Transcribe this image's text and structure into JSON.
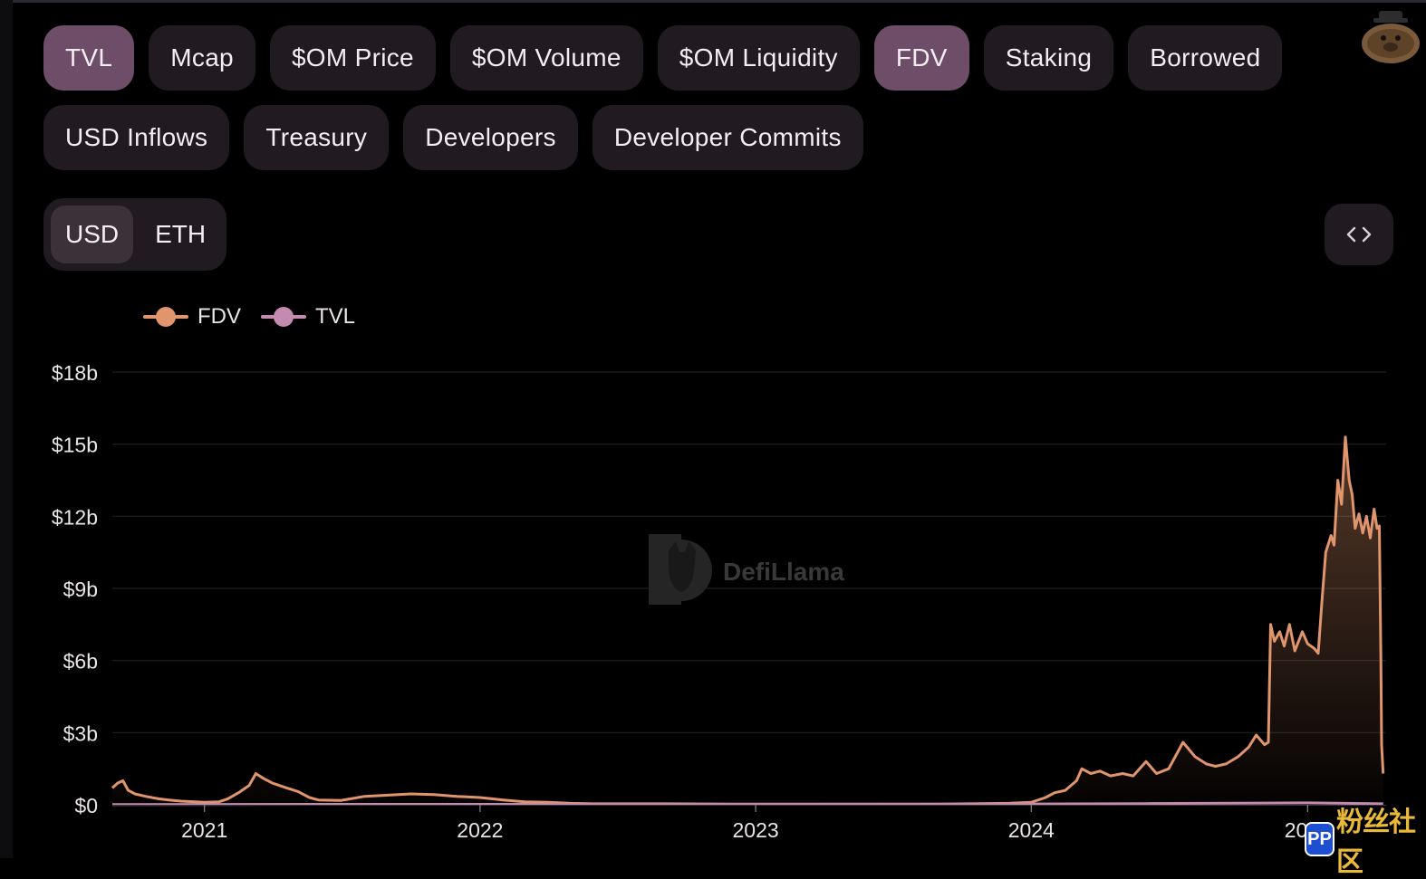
{
  "tabs": {
    "row1": [
      {
        "label": "TVL",
        "active": true
      },
      {
        "label": "Mcap",
        "active": false
      },
      {
        "label": "$OM Price",
        "active": false
      },
      {
        "label": "$OM Volume",
        "active": false
      },
      {
        "label": "$OM Liquidity",
        "active": false
      },
      {
        "label": "FDV",
        "active": true
      },
      {
        "label": "Staking",
        "active": false
      },
      {
        "label": "Borrowed",
        "active": false
      }
    ],
    "row2": [
      {
        "label": "USD Inflows",
        "active": false
      },
      {
        "label": "Treasury",
        "active": false
      },
      {
        "label": "Developers",
        "active": false
      },
      {
        "label": "Developer Commits",
        "active": false
      }
    ]
  },
  "unit_toggle": {
    "usd": "USD",
    "eth": "ETH",
    "selected": "USD"
  },
  "embed_icon": "code-brackets-icon",
  "watermark": "DefiLlama",
  "badge": {
    "logo": "PP",
    "text": "粉丝社区"
  },
  "chart_data": {
    "type": "line",
    "legend_position": "top-left",
    "grid": true,
    "xlim": [
      "2020-09-01",
      "2025-04-15"
    ],
    "ylim": [
      0,
      18
    ],
    "y_ticks": [
      0,
      3,
      6,
      9,
      12,
      15,
      18
    ],
    "y_tick_labels": [
      "$0",
      "$3b",
      "$6b",
      "$9b",
      "$12b",
      "$15b",
      "$18b"
    ],
    "x_tick_dates": [
      "2021-01-01",
      "2022-01-01",
      "2023-01-01",
      "2024-01-01",
      "2025-01-01"
    ],
    "x_tick_labels": [
      "2021",
      "2022",
      "2023",
      "2024",
      "2025"
    ],
    "series": [
      {
        "name": "FDV",
        "color": "#e0956c",
        "fill": true,
        "unit": "USD billions",
        "points": [
          [
            "2020-09-01",
            0.7
          ],
          [
            "2020-09-08",
            0.9
          ],
          [
            "2020-09-15",
            1.0
          ],
          [
            "2020-09-22",
            0.6
          ],
          [
            "2020-10-01",
            0.45
          ],
          [
            "2020-10-15",
            0.35
          ],
          [
            "2020-11-01",
            0.25
          ],
          [
            "2020-11-15",
            0.2
          ],
          [
            "2020-12-01",
            0.15
          ],
          [
            "2021-01-01",
            0.1
          ],
          [
            "2021-01-20",
            0.12
          ],
          [
            "2021-02-01",
            0.25
          ],
          [
            "2021-02-15",
            0.5
          ],
          [
            "2021-03-01",
            0.8
          ],
          [
            "2021-03-10",
            1.3
          ],
          [
            "2021-03-20",
            1.1
          ],
          [
            "2021-04-01",
            0.9
          ],
          [
            "2021-04-20",
            0.7
          ],
          [
            "2021-05-05",
            0.55
          ],
          [
            "2021-05-20",
            0.3
          ],
          [
            "2021-06-01",
            0.2
          ],
          [
            "2021-07-01",
            0.18
          ],
          [
            "2021-08-01",
            0.35
          ],
          [
            "2021-09-01",
            0.4
          ],
          [
            "2021-10-01",
            0.45
          ],
          [
            "2021-11-01",
            0.42
          ],
          [
            "2021-12-01",
            0.35
          ],
          [
            "2022-01-01",
            0.3
          ],
          [
            "2022-02-01",
            0.2
          ],
          [
            "2022-03-01",
            0.12
          ],
          [
            "2022-04-01",
            0.1
          ],
          [
            "2022-05-01",
            0.06
          ],
          [
            "2022-06-01",
            0.04
          ],
          [
            "2022-09-01",
            0.04
          ],
          [
            "2022-12-01",
            0.03
          ],
          [
            "2023-03-01",
            0.03
          ],
          [
            "2023-06-01",
            0.03
          ],
          [
            "2023-09-01",
            0.03
          ],
          [
            "2023-12-01",
            0.06
          ],
          [
            "2024-01-01",
            0.1
          ],
          [
            "2024-01-20",
            0.3
          ],
          [
            "2024-02-01",
            0.5
          ],
          [
            "2024-02-15",
            0.6
          ],
          [
            "2024-03-01",
            1.0
          ],
          [
            "2024-03-08",
            1.5
          ],
          [
            "2024-03-20",
            1.3
          ],
          [
            "2024-04-01",
            1.4
          ],
          [
            "2024-04-15",
            1.2
          ],
          [
            "2024-05-01",
            1.3
          ],
          [
            "2024-05-15",
            1.2
          ],
          [
            "2024-06-01",
            1.8
          ],
          [
            "2024-06-15",
            1.3
          ],
          [
            "2024-07-01",
            1.5
          ],
          [
            "2024-07-20",
            2.6
          ],
          [
            "2024-08-05",
            2.0
          ],
          [
            "2024-08-20",
            1.7
          ],
          [
            "2024-09-01",
            1.6
          ],
          [
            "2024-09-15",
            1.7
          ],
          [
            "2024-10-01",
            2.0
          ],
          [
            "2024-10-15",
            2.4
          ],
          [
            "2024-10-25",
            2.9
          ],
          [
            "2024-11-05",
            2.5
          ],
          [
            "2024-11-10",
            2.6
          ],
          [
            "2024-11-13",
            7.5
          ],
          [
            "2024-11-18",
            6.8
          ],
          [
            "2024-11-25",
            7.2
          ],
          [
            "2024-12-01",
            6.6
          ],
          [
            "2024-12-08",
            7.5
          ],
          [
            "2024-12-15",
            6.4
          ],
          [
            "2024-12-25",
            7.2
          ],
          [
            "2025-01-01",
            6.7
          ],
          [
            "2025-01-10",
            6.5
          ],
          [
            "2025-01-15",
            6.3
          ],
          [
            "2025-01-20",
            8.5
          ],
          [
            "2025-01-25",
            10.5
          ],
          [
            "2025-02-01",
            11.2
          ],
          [
            "2025-02-05",
            10.8
          ],
          [
            "2025-02-10",
            13.5
          ],
          [
            "2025-02-15",
            12.5
          ],
          [
            "2025-02-20",
            15.3
          ],
          [
            "2025-02-25",
            13.5
          ],
          [
            "2025-03-01",
            12.9
          ],
          [
            "2025-03-05",
            11.5
          ],
          [
            "2025-03-10",
            12.1
          ],
          [
            "2025-03-15",
            11.3
          ],
          [
            "2025-03-20",
            12.0
          ],
          [
            "2025-03-25",
            11.1
          ],
          [
            "2025-03-30",
            12.3
          ],
          [
            "2025-04-03",
            11.5
          ],
          [
            "2025-04-06",
            11.6
          ],
          [
            "2025-04-08",
            6.0
          ],
          [
            "2025-04-09",
            2.5
          ],
          [
            "2025-04-11",
            1.3
          ]
        ]
      },
      {
        "name": "TVL",
        "color": "#c58ab0",
        "fill": false,
        "unit": "USD billions",
        "points": [
          [
            "2020-09-01",
            0.01
          ],
          [
            "2021-06-01",
            0.02
          ],
          [
            "2022-01-01",
            0.02
          ],
          [
            "2023-01-01",
            0.02
          ],
          [
            "2024-01-01",
            0.03
          ],
          [
            "2024-06-01",
            0.05
          ],
          [
            "2025-01-01",
            0.08
          ],
          [
            "2025-04-11",
            0.04
          ]
        ]
      }
    ]
  }
}
